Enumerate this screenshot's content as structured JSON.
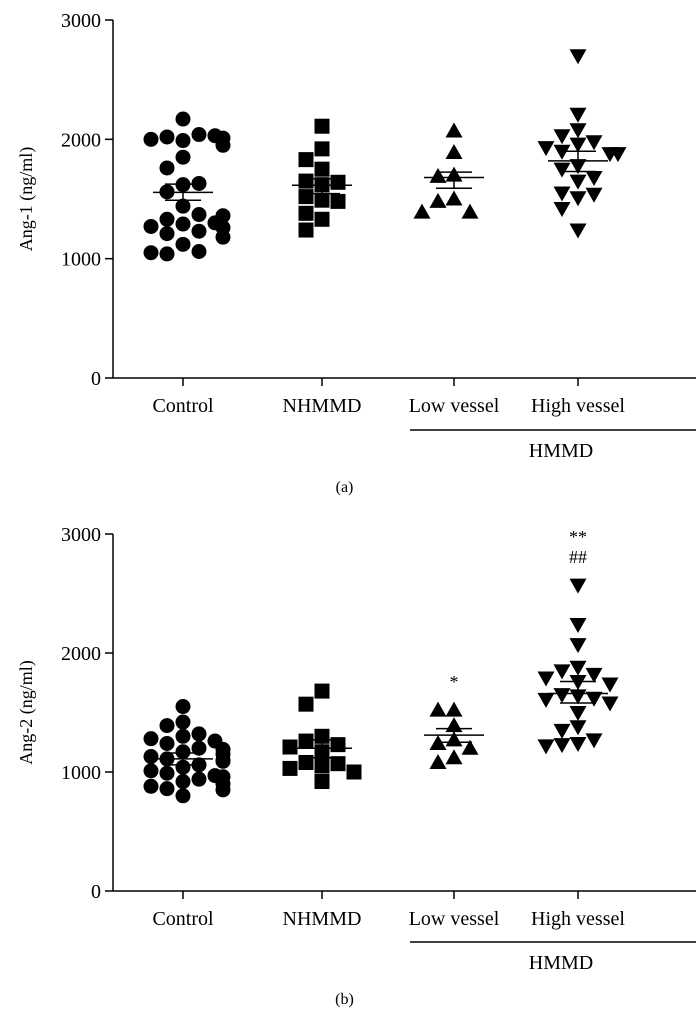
{
  "chart_data": [
    {
      "type": "scatter",
      "panel_label": "(a)",
      "ylabel": "Ang-1 (ng/ml)",
      "ylim": [
        0,
        3000
      ],
      "yticks": [
        0,
        1000,
        2000,
        3000
      ],
      "categories": [
        "Control",
        "NHMMD",
        "Low vessel",
        "High vessel"
      ],
      "group_bracket": {
        "label": "HMMD",
        "spans": [
          "Low vessel",
          "High vessel"
        ]
      },
      "colors": {
        "marker": "#000000"
      },
      "series": [
        {
          "category": "Control",
          "marker": "circle",
          "mean": 1555,
          "sem_low": 1490,
          "sem_high": 1625,
          "values": [
            2170,
            1990,
            2020,
            2040,
            2000,
            2030,
            2010,
            1850,
            1950,
            1760,
            1620,
            1560,
            1630,
            1440,
            1330,
            1370,
            1290,
            1270,
            1300,
            1260,
            1230,
            1210,
            1360,
            1180,
            1120,
            1040,
            1060,
            1050
          ]
        },
        {
          "category": "NHMMD",
          "marker": "square",
          "mean": 1615,
          "sem_low": 1545,
          "sem_high": 1670,
          "values": [
            2110,
            1920,
            1830,
            1750,
            1650,
            1640,
            1620,
            1520,
            1490,
            1480,
            1380,
            1330,
            1240
          ]
        },
        {
          "category": "Low vessel",
          "marker": "triangle-up",
          "mean": 1680,
          "sem_low": 1590,
          "sem_high": 1725,
          "values": [
            2070,
            1890,
            1700,
            1690,
            1500,
            1480,
            1390,
            1390
          ]
        },
        {
          "category": "High vessel",
          "marker": "triangle-down",
          "mean": 1820,
          "sem_low": 1730,
          "sem_high": 1900,
          "values": [
            2700,
            2210,
            2080,
            2030,
            1980,
            1960,
            1930,
            1900,
            1880,
            1880,
            1780,
            1750,
            1680,
            1650,
            1550,
            1540,
            1510,
            1420,
            1240
          ]
        }
      ],
      "annotations": []
    },
    {
      "type": "scatter",
      "panel_label": "(b)",
      "ylabel": "Ang-2 (ng/ml)",
      "ylim": [
        0,
        3000
      ],
      "yticks": [
        0,
        1000,
        2000,
        3000
      ],
      "categories": [
        "Control",
        "NHMMD",
        "Low vessel",
        "High vessel"
      ],
      "group_bracket": {
        "label": "HMMD",
        "spans": [
          "Low vessel",
          "High vessel"
        ]
      },
      "colors": {
        "marker": "#000000"
      },
      "series": [
        {
          "category": "Control",
          "marker": "circle",
          "mean": 1110,
          "sem_low": 1060,
          "sem_high": 1160,
          "values": [
            1550,
            1420,
            1390,
            1300,
            1320,
            1280,
            1240,
            1260,
            1200,
            1190,
            1170,
            1130,
            1110,
            1100,
            1090,
            1060,
            1040,
            1010,
            990,
            970,
            960,
            940,
            920,
            900,
            880,
            860,
            850,
            800,
            1150
          ]
        },
        {
          "category": "NHMMD",
          "marker": "square",
          "mean": 1200,
          "sem_low": 1120,
          "sem_high": 1270,
          "values": [
            1680,
            1570,
            1300,
            1260,
            1230,
            1210,
            1170,
            1080,
            1070,
            1050,
            1030,
            1000,
            920
          ]
        },
        {
          "category": "Low vessel",
          "marker": "triangle-up",
          "mean": 1310,
          "sem_low": 1250,
          "sem_high": 1365,
          "values": [
            1520,
            1520,
            1390,
            1270,
            1240,
            1200,
            1120,
            1080
          ]
        },
        {
          "category": "High vessel",
          "marker": "triangle-down",
          "mean": 1660,
          "sem_low": 1580,
          "sem_high": 1760,
          "values": [
            2570,
            2240,
            2070,
            1880,
            1850,
            1820,
            1790,
            1760,
            1740,
            1650,
            1640,
            1620,
            1610,
            1580,
            1500,
            1380,
            1350,
            1270,
            1240,
            1230,
            1220
          ]
        }
      ],
      "annotations": [
        {
          "category": "Low vessel",
          "text": "*"
        },
        {
          "category": "High vessel",
          "text": "**"
        },
        {
          "category": "High vessel",
          "text": "##"
        }
      ]
    }
  ]
}
